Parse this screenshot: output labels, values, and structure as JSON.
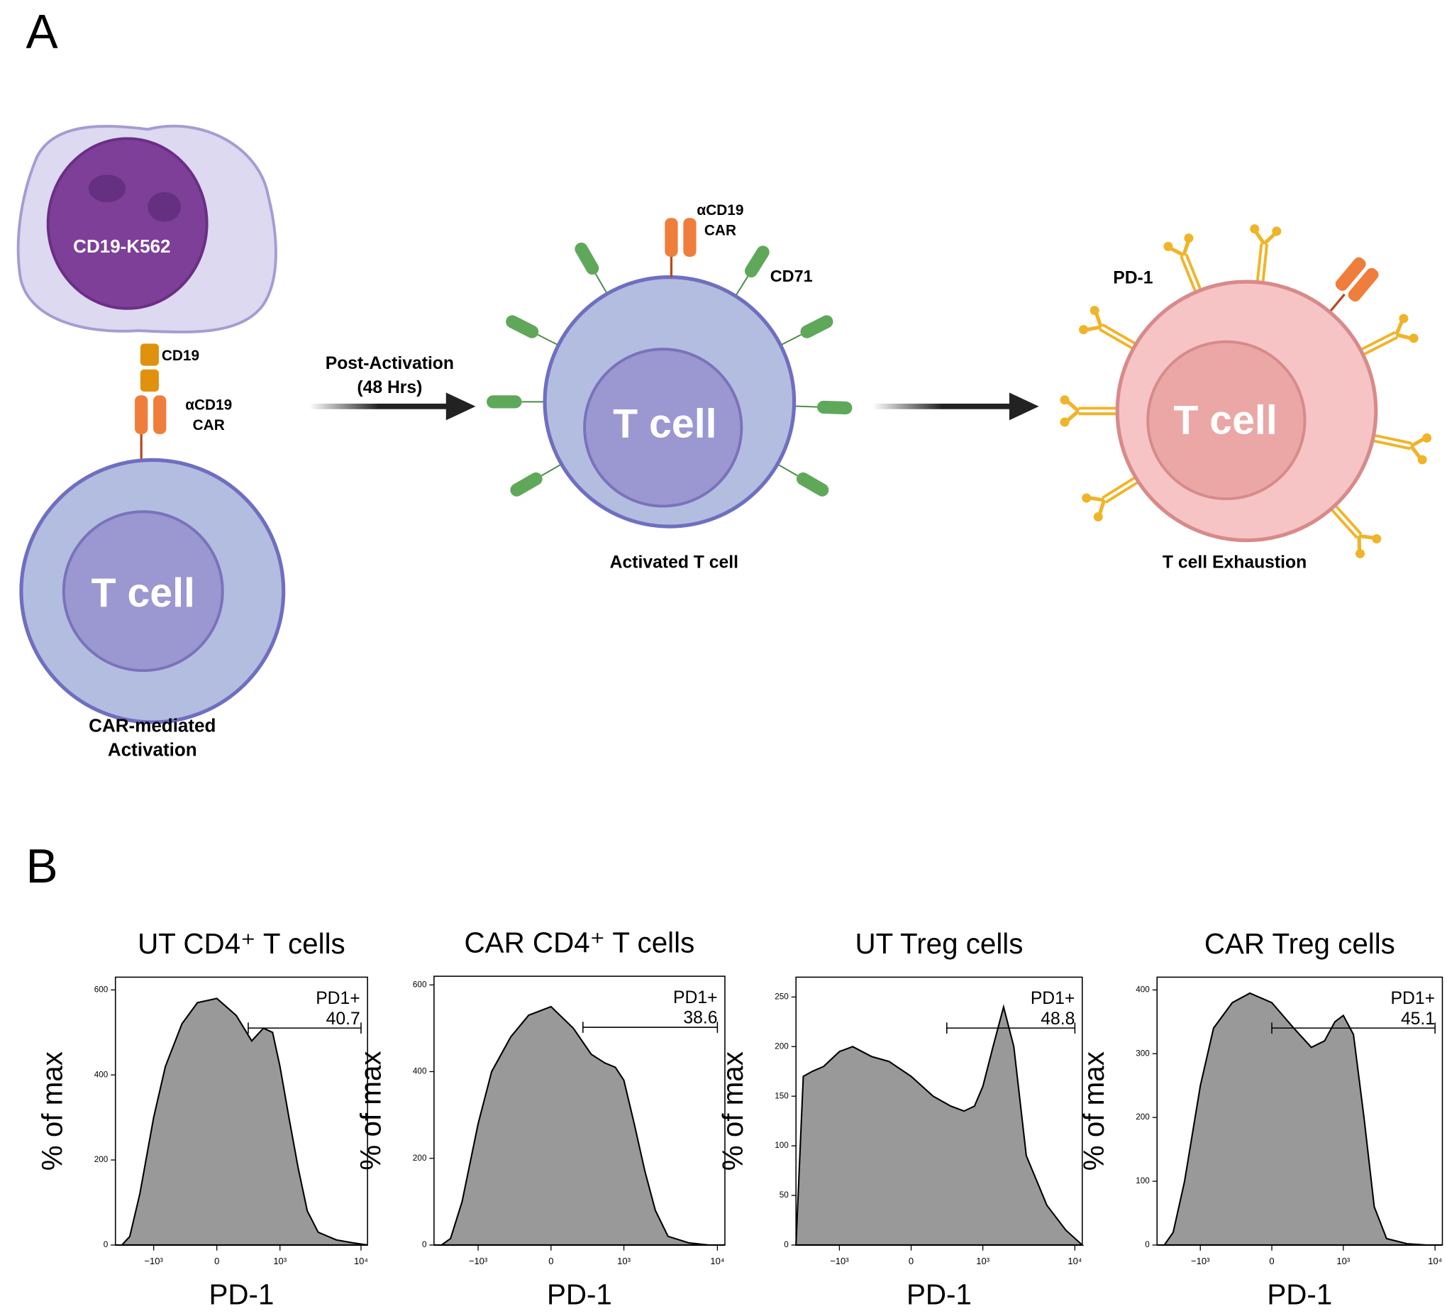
{
  "panel_a": {
    "label": "A",
    "source_cell": "CD19-K562",
    "antigen": "CD19",
    "car_label": [
      "αCD19",
      "CAR"
    ],
    "t_cell": "T cell",
    "step1": [
      "CAR-mediated",
      "Activation"
    ],
    "arrow1": [
      "Post-Activation",
      "(48 Hrs)"
    ],
    "car_label_2": [
      "αCD19",
      "CAR"
    ],
    "marker": "CD71",
    "t_cell_2": "T cell",
    "step2": "Activated T cell",
    "marker_2": "PD-1",
    "t_cell_3": "T cell",
    "step3": "T cell Exhaustion"
  },
  "panel_b": {
    "label": "B"
  },
  "chart_data": [
    {
      "type": "area",
      "title": "UT CD4⁺ T cells",
      "xlabel": "PD-1",
      "ylabel": "% of max",
      "color": "#999999",
      "xscale": "arcsinh",
      "x": [
        -3000,
        -2500,
        -2000,
        -1500,
        -1000,
        -700,
        -400,
        -200,
        0,
        200,
        400,
        600,
        800,
        1000,
        1300,
        1700,
        2200,
        3000,
        5000,
        8000,
        12000
      ],
      "values": [
        0,
        0,
        20,
        120,
        300,
        420,
        520,
        570,
        580,
        540,
        480,
        510,
        500,
        420,
        300,
        180,
        80,
        30,
        12,
        5,
        0
      ],
      "xlim": [
        -3000,
        12000
      ],
      "xticks": [
        {
          "value": -1000,
          "label": "−10³"
        },
        0,
        {
          "value": 1000,
          "label": "10³"
        },
        {
          "value": 10000,
          "label": "10⁴"
        }
      ],
      "ylim": [
        0,
        630
      ],
      "yticks": [
        0,
        200,
        400,
        600
      ],
      "gate": {
        "label": "PD1+",
        "value": 40.7,
        "range": [
          350,
          10000
        ]
      }
    },
    {
      "type": "area",
      "title": "CAR CD4⁺ T cells",
      "xlabel": "PD-1",
      "ylabel": "% of max",
      "color": "#999999",
      "xscale": "arcsinh",
      "x": [
        -3000,
        -2500,
        -2000,
        -1500,
        -1000,
        -700,
        -400,
        -200,
        0,
        200,
        400,
        600,
        800,
        1000,
        1300,
        1700,
        2200,
        3000,
        5000,
        8000,
        12000
      ],
      "values": [
        0,
        0,
        15,
        100,
        280,
        400,
        480,
        530,
        550,
        500,
        440,
        420,
        410,
        380,
        280,
        170,
        80,
        20,
        5,
        0,
        0
      ],
      "xlim": [
        -3000,
        12000
      ],
      "xticks": [
        {
          "value": -1000,
          "label": "−10³"
        },
        0,
        {
          "value": 1000,
          "label": "10³"
        },
        {
          "value": 10000,
          "label": "10⁴"
        }
      ],
      "ylim": [
        0,
        620
      ],
      "yticks": [
        0,
        200,
        400,
        600
      ],
      "gate": {
        "label": "PD1+",
        "value": 38.6,
        "range": [
          300,
          10000
        ]
      }
    },
    {
      "type": "area",
      "title": "UT Treg cells",
      "xlabel": "PD-1",
      "ylabel": "% of max",
      "color": "#999999",
      "xscale": "arcsinh",
      "x": [
        -3000,
        -2500,
        -2000,
        -1500,
        -1000,
        -700,
        -400,
        -200,
        0,
        200,
        400,
        600,
        800,
        1000,
        1300,
        1700,
        2200,
        3000,
        5000,
        8000,
        12000
      ],
      "values": [
        0,
        170,
        175,
        180,
        195,
        200,
        190,
        185,
        170,
        150,
        140,
        135,
        140,
        160,
        200,
        240,
        200,
        90,
        40,
        15,
        0
      ],
      "xlim": [
        -3000,
        12000
      ],
      "xticks": [
        {
          "value": -1000,
          "label": "−10³"
        },
        0,
        {
          "value": 1000,
          "label": "10³"
        },
        {
          "value": 10000,
          "label": "10⁴"
        }
      ],
      "ylim": [
        0,
        270
      ],
      "yticks": [
        0,
        50,
        100,
        150,
        200,
        250
      ],
      "gate": {
        "label": "PD1+",
        "value": 48.8,
        "range": [
          350,
          10000
        ]
      }
    },
    {
      "type": "area",
      "title": "CAR Treg cells",
      "xlabel": "PD-1",
      "ylabel": "% of max",
      "color": "#999999",
      "xscale": "arcsinh",
      "x": [
        -3000,
        -2500,
        -2000,
        -1500,
        -1000,
        -700,
        -400,
        -200,
        0,
        200,
        400,
        600,
        800,
        1000,
        1300,
        1700,
        2200,
        3000,
        5000,
        8000,
        12000
      ],
      "values": [
        0,
        0,
        20,
        100,
        250,
        340,
        380,
        395,
        380,
        340,
        310,
        320,
        350,
        360,
        330,
        200,
        60,
        10,
        2,
        0,
        0
      ],
      "xlim": [
        -3000,
        12000
      ],
      "xticks": [
        {
          "value": -1000,
          "label": "−10³"
        },
        0,
        {
          "value": 1000,
          "label": "10³"
        },
        {
          "value": 10000,
          "label": "10⁴"
        }
      ],
      "ylim": [
        0,
        420
      ],
      "yticks": [
        0,
        100,
        200,
        300,
        400
      ],
      "gate": {
        "label": "PD1+",
        "value": 45.1,
        "range": [
          0,
          10000
        ]
      }
    }
  ]
}
